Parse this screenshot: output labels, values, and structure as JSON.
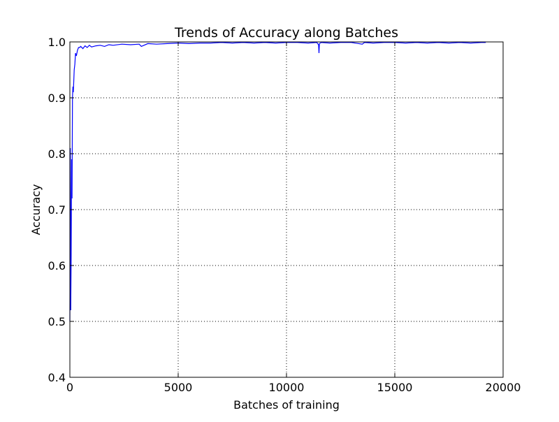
{
  "chart_data": {
    "type": "line",
    "title": "Trends of Accuracy along Batches",
    "xlabel": "Batches of training",
    "ylabel": "Accuracy",
    "xlim": [
      0,
      20000
    ],
    "ylim": [
      0.4,
      1.0
    ],
    "xticks": [
      0,
      5000,
      10000,
      15000,
      20000
    ],
    "xtick_labels": [
      "0",
      "5000",
      "10000",
      "15000",
      "20000"
    ],
    "yticks": [
      0.4,
      0.5,
      0.6,
      0.7,
      0.8,
      0.9,
      1.0
    ],
    "ytick_labels": [
      "0.4",
      "0.5",
      "0.6",
      "0.7",
      "0.8",
      "0.9",
      "1.0"
    ],
    "grid": true,
    "legend": "none",
    "series": [
      {
        "color": "#0000ff",
        "x": [
          0,
          20,
          40,
          60,
          80,
          100,
          120,
          140,
          160,
          180,
          200,
          230,
          260,
          300,
          350,
          400,
          450,
          500,
          600,
          700,
          800,
          900,
          1000,
          1200,
          1400,
          1600,
          1800,
          2000,
          2400,
          2800,
          3200,
          3300,
          3600,
          4000,
          4500,
          5000,
          5500,
          6000,
          6500,
          7000,
          7500,
          8000,
          8500,
          9000,
          9500,
          10000,
          10500,
          11000,
          11400,
          11480,
          11500,
          11520,
          11600,
          12000,
          12500,
          13000,
          13500,
          13600,
          14000,
          14500,
          15000,
          15500,
          16000,
          16500,
          17000,
          17500,
          18000,
          18500,
          19000,
          19200
        ],
        "y": [
          0.5,
          0.81,
          0.52,
          0.62,
          0.79,
          0.72,
          0.9,
          0.92,
          0.91,
          0.93,
          0.95,
          0.96,
          0.98,
          0.975,
          0.985,
          0.99,
          0.99,
          0.992,
          0.988,
          0.993,
          0.99,
          0.994,
          0.991,
          0.993,
          0.994,
          0.992,
          0.995,
          0.994,
          0.996,
          0.995,
          0.996,
          0.992,
          0.997,
          0.996,
          0.997,
          0.998,
          0.997,
          0.998,
          0.998,
          0.999,
          0.998,
          0.999,
          0.998,
          0.999,
          0.998,
          0.999,
          0.999,
          0.998,
          0.999,
          0.995,
          0.98,
          0.997,
          0.999,
          0.998,
          0.999,
          0.999,
          0.996,
          0.999,
          0.998,
          0.999,
          0.999,
          0.998,
          0.999,
          0.998,
          0.999,
          0.998,
          0.999,
          0.998,
          0.999,
          0.999
        ]
      }
    ]
  }
}
